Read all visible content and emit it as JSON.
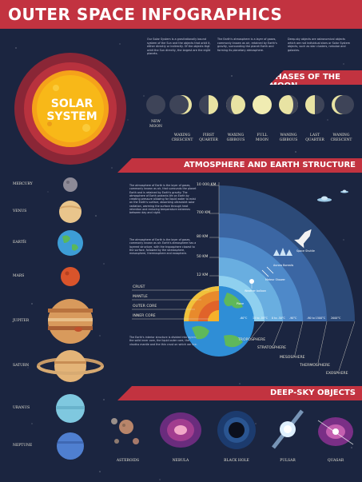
{
  "header": {
    "title": "OUTER SPACE INFOGRAPHICS"
  },
  "intro": [
    "Our Solar System is a gravitationally bound system of the Sun and the objects that orbit it, either directly or indirectly. Of the objects that orbit the Sun directly, the largest are the eight planets.",
    "The Earth's atmosphere is a layer of gases, commonly known as air, retained by Earth's gravity, surrounding the planet Earth and forming its planetary atmosphere.",
    "Deep-sky objects are astronomical objects which are not individual stars or Solar System objects, such as star clusters, nebulae and galaxies."
  ],
  "sun": {
    "line1": "SOLAR",
    "line2": "SYSTEM"
  },
  "planets": [
    {
      "name": "MERCURY"
    },
    {
      "name": "VENUS"
    },
    {
      "name": "EARTH"
    },
    {
      "name": "MARS"
    },
    {
      "name": "JUPITER"
    },
    {
      "name": "SATURN"
    },
    {
      "name": "URANUS"
    },
    {
      "name": "NEPTUNE"
    }
  ],
  "moon": {
    "section_title": "PHASES OF THE MOON",
    "phases": [
      {
        "line1": "NEW",
        "line2": "MOON"
      },
      {
        "line1": "WAXING",
        "line2": "CRESCENT"
      },
      {
        "line1": "FIRST",
        "line2": "QUARTER"
      },
      {
        "line1": "WAXING",
        "line2": "GIBBOUS"
      },
      {
        "line1": "FULL",
        "line2": "MOON"
      },
      {
        "line1": "WANING",
        "line2": "GIBBOUS"
      },
      {
        "line1": "LAST",
        "line2": "QUARTER"
      },
      {
        "line1": "WANING",
        "line2": "CRESCENT"
      }
    ]
  },
  "atmosphere": {
    "section_title": "ATMOSPHERE AND EARTH STRUCTURE",
    "text1": "The atmosphere of Earth is the layer of gases, commonly known as air, that surrounds the planet Earth and is retained by Earth's gravity. The atmosphere of Earth protects life on Earth by creating pressure allowing for liquid water to exist on the Earth's surface, absorbing ultraviolet solar radiation, warming the surface through heat retention and reducing temperature extremes between day and night.",
    "text2": "The atmosphere of Earth is the layer of gases, commonly known as air. Earth's atmosphere has a layered structure, with the troposphere closest to the surface, followed by the stratosphere, mesosphere, thermosphere and exosphere.",
    "text3": "The Earth's interior structure is divided into layers: the solid inner core, the liquid outer core, the viscous mantle and the thin crust on which we live.",
    "altitudes": [
      "10 000 KM",
      "700 KM",
      "80 KM",
      "50 KM",
      "12 KM"
    ],
    "earth_layers": [
      "CRUST",
      "MANTLE",
      "OUTER CORE",
      "INNER CORE"
    ],
    "atmo_layers": [
      "TROPOSPHERE",
      "STRATOSPHERE",
      "MESOSPHERE",
      "THERMOSPHERE",
      "EXOSPHERE"
    ],
    "objects": {
      "space_shuttle": "Space Shuttle",
      "aurora": "Aurora Borealis",
      "meteor": "Meteor Shower",
      "balloon": "Weather balloon",
      "plane": "Plane"
    },
    "temps": [
      "-60°C",
      "15 to -55°C",
      "0 to -50°C",
      "-90°C",
      "-90 to 1500°C",
      "2000°C"
    ]
  },
  "deep_sky": {
    "section_title": "DEEP-SKY OBJECTS",
    "objects": [
      {
        "name": "ASTEROIDS"
      },
      {
        "name": "NEBULA"
      },
      {
        "name": "BLACK HOLE"
      },
      {
        "name": "PULSAR"
      },
      {
        "name": "QUASAR"
      }
    ]
  },
  "colors": {
    "background": "#1b2540",
    "accent": "#c23340",
    "sun": "#f7b515",
    "moon": "#e8e3a3"
  }
}
